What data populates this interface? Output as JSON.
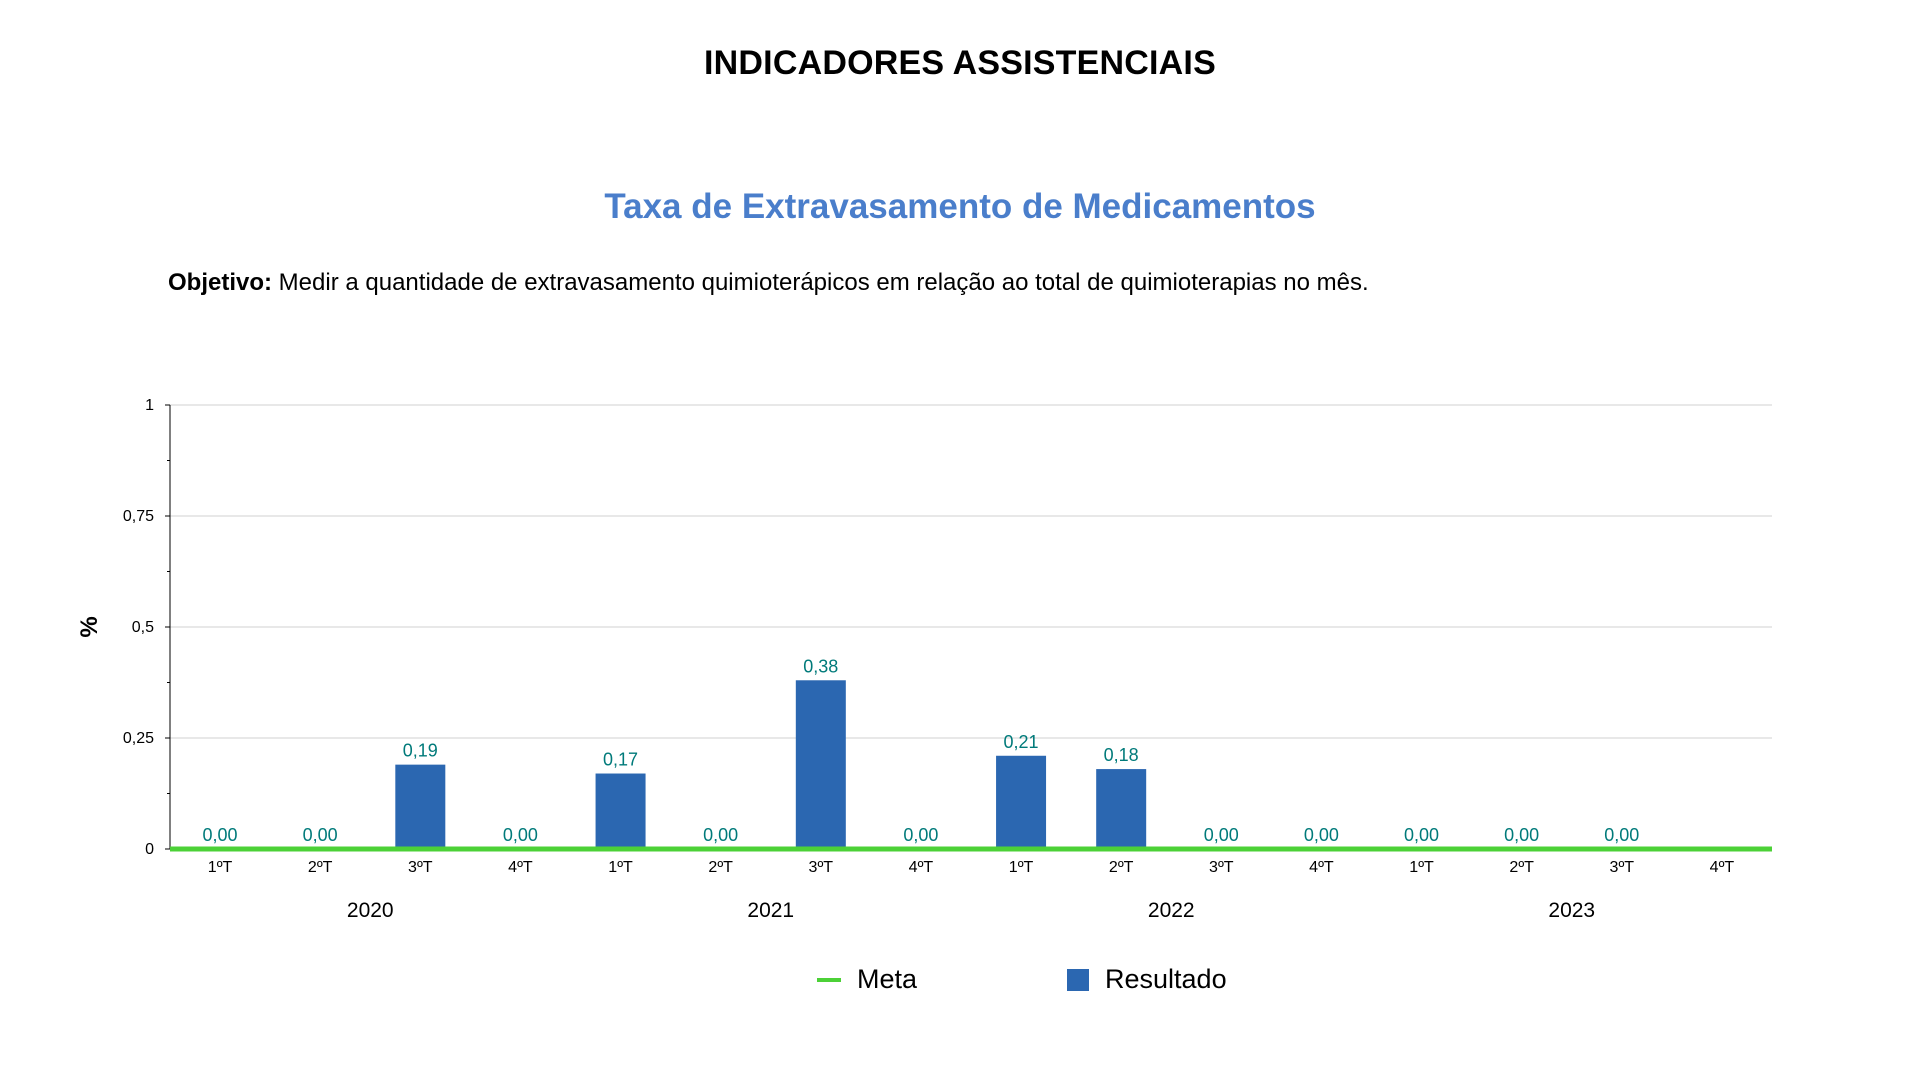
{
  "page": {
    "title": "INDICADORES ASSISTENCIAIS"
  },
  "chart_title": "Taxa de Extravasamento de Medicamentos",
  "objective": {
    "label": "Objetivo:",
    "text": " Medir a quantidade de extravasamento quimioterápicos em relação ao total de quimioterapias no mês."
  },
  "legend": {
    "meta": "Meta",
    "resultado": "Resultado"
  },
  "colors": {
    "bar": "#2B67B1",
    "meta": "#4CD137",
    "data_label": "#007A7A",
    "chart_title": "#4A7ECB",
    "grid": "#D0D0D0"
  },
  "chart_data": {
    "type": "bar",
    "title": "Taxa de Extravasamento de Medicamentos",
    "ylabel": "%",
    "xlabel": "",
    "ylim": [
      0,
      1
    ],
    "yticks": [
      0,
      0.25,
      0.5,
      0.75,
      1
    ],
    "ytick_labels": [
      "0",
      "0,25",
      "0,5",
      "0,75",
      "1"
    ],
    "grid": true,
    "legend_position": "bottom",
    "categories": [
      "1ºT",
      "2ºT",
      "3ºT",
      "4ºT",
      "1ºT",
      "2ºT",
      "3ºT",
      "4ºT",
      "1ºT",
      "2ºT",
      "3ºT",
      "4ºT",
      "1ºT",
      "2ºT",
      "3ºT",
      "4ºT"
    ],
    "groups": [
      "2020",
      "2021",
      "2022",
      "2023"
    ],
    "series": [
      {
        "name": "Resultado",
        "type": "bar",
        "values": [
          0,
          0,
          0.19,
          0,
          0.17,
          0,
          0.38,
          0,
          0.21,
          0.18,
          0,
          0,
          0,
          0,
          0,
          null
        ],
        "labels": [
          "0,00",
          "0,00",
          "0,19",
          "0,00",
          "0,17",
          "0,00",
          "0,38",
          "0,00",
          "0,21",
          "0,18",
          "0,00",
          "0,00",
          "0,00",
          "0,00",
          "0,00",
          ""
        ]
      },
      {
        "name": "Meta",
        "type": "line",
        "values": [
          0,
          0,
          0,
          0,
          0,
          0,
          0,
          0,
          0,
          0,
          0,
          0,
          0,
          0,
          0,
          0
        ]
      }
    ]
  }
}
